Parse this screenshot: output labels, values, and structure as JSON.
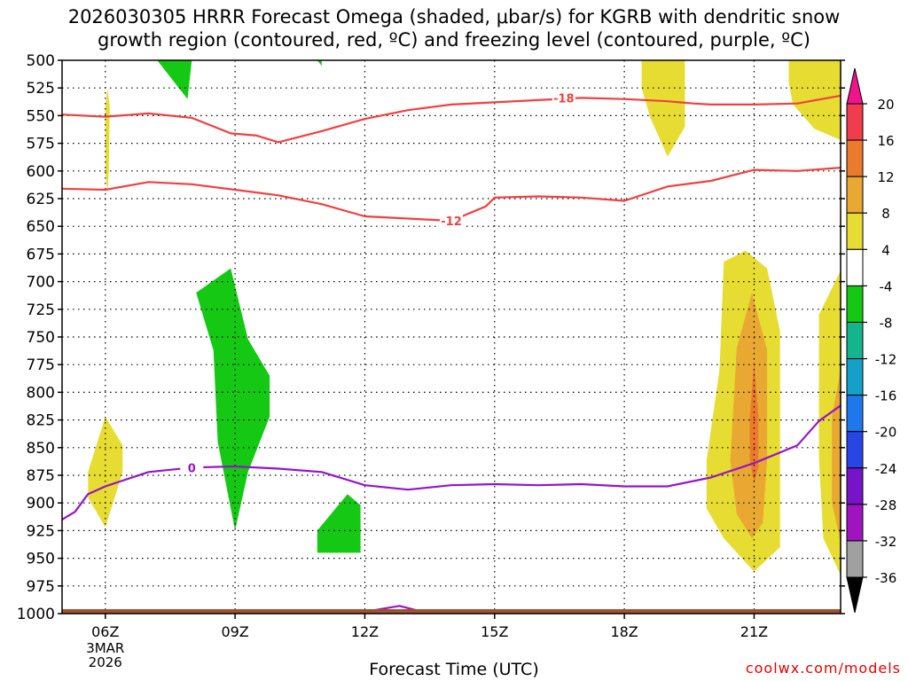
{
  "title_line1": "2026030305 HRRR Forecast Omega (shaded, μbar/s) for KGRB with dendritic snow",
  "title_line2": "growth region (contoured, red, ºC) and freezing level (contoured, purple, ºC)",
  "credit": "coolwx.com/models",
  "chart_data": {
    "type": "heatmap",
    "xlabel": "Forecast Time (UTC)",
    "x_axis": {
      "range_hours_utc_2026_03_03": [
        5.0,
        23.0
      ],
      "ticks": [
        {
          "hour": 6,
          "label": "06Z",
          "sublabels": [
            "3MAR",
            "2026"
          ]
        },
        {
          "hour": 9,
          "label": "09Z"
        },
        {
          "hour": 12,
          "label": "12Z"
        },
        {
          "hour": 15,
          "label": "15Z"
        },
        {
          "hour": 18,
          "label": "18Z"
        },
        {
          "hour": 21,
          "label": "21Z"
        }
      ]
    },
    "y_axis": {
      "units": "hPa",
      "range": [
        500,
        1000
      ],
      "ticks": [
        500,
        525,
        550,
        575,
        600,
        625,
        650,
        675,
        700,
        725,
        750,
        775,
        800,
        825,
        850,
        875,
        900,
        925,
        950,
        975,
        1000
      ]
    },
    "grid": "dotted",
    "colorbar": {
      "labels": [
        "20",
        "16",
        "12",
        "8",
        "4",
        "-4",
        "-8",
        "-12",
        "-16",
        "-20",
        "-24",
        "-28",
        "-32",
        "-36"
      ],
      "bins": [
        {
          "from": 16,
          "to": 20,
          "color": "#f03c4c"
        },
        {
          "from": 12,
          "to": 16,
          "color": "#ec7a2c"
        },
        {
          "from": 8,
          "to": 12,
          "color": "#e8a832"
        },
        {
          "from": 4,
          "to": 8,
          "color": "#e6dc32"
        },
        {
          "from": -4,
          "to": 4,
          "color": "#ffffff"
        },
        {
          "from": -8,
          "to": -4,
          "color": "#14c814"
        },
        {
          "from": -12,
          "to": -8,
          "color": "#14b48c"
        },
        {
          "from": -16,
          "to": -12,
          "color": "#14a0c8"
        },
        {
          "from": -20,
          "to": -16,
          "color": "#1e78ec"
        },
        {
          "from": -24,
          "to": -20,
          "color": "#2846e6"
        },
        {
          "from": -28,
          "to": -24,
          "color": "#7814c8"
        },
        {
          "from": -32,
          "to": -28,
          "color": "#a014c0"
        },
        {
          "from": -36,
          "to": -32,
          "color": "#a0a0a0"
        }
      ],
      "top_arrow_color": "#f0148c",
      "bottom_arrow_color": "#000000"
    },
    "shaded_regions": [
      {
        "band": "4-8",
        "color": "#e6dc32",
        "polygon": [
          [
            6.0,
            542
          ],
          [
            6.05,
            525
          ],
          [
            6.1,
            542
          ],
          [
            6.08,
            600
          ],
          [
            6.05,
            620
          ],
          [
            6.0,
            600
          ]
        ]
      },
      {
        "band": "4-8",
        "color": "#e6dc32",
        "polygon": [
          [
            5.6,
            872
          ],
          [
            6.0,
            822
          ],
          [
            6.4,
            848
          ],
          [
            6.4,
            872
          ],
          [
            6.0,
            922
          ],
          [
            5.6,
            895
          ]
        ]
      },
      {
        "band": "-8--4",
        "color": "#14c814",
        "polygon": [
          [
            7.2,
            500
          ],
          [
            8.0,
            500
          ],
          [
            7.9,
            535
          ],
          [
            7.6,
            520
          ]
        ]
      },
      {
        "band": "-8--4",
        "color": "#14c814",
        "polygon": [
          [
            10.9,
            500
          ],
          [
            11.0,
            500
          ],
          [
            11.0,
            505
          ]
        ]
      },
      {
        "band": "-8--4",
        "color": "#14c814",
        "polygon": [
          [
            8.1,
            710
          ],
          [
            8.9,
            688
          ],
          [
            9.3,
            752
          ],
          [
            9.8,
            785
          ],
          [
            9.8,
            822
          ],
          [
            9.3,
            872
          ],
          [
            9.0,
            925
          ],
          [
            8.6,
            845
          ],
          [
            8.5,
            762
          ]
        ]
      },
      {
        "band": "-8--4",
        "color": "#14c814",
        "polygon": [
          [
            10.9,
            925
          ],
          [
            11.6,
            892
          ],
          [
            11.9,
            902
          ],
          [
            11.9,
            945
          ],
          [
            10.9,
            945
          ]
        ]
      },
      {
        "band": "4-8",
        "color": "#e6dc32",
        "polygon": [
          [
            18.4,
            500
          ],
          [
            19.4,
            500
          ],
          [
            19.4,
            560
          ],
          [
            19.0,
            587
          ],
          [
            18.6,
            552
          ],
          [
            18.4,
            525
          ]
        ]
      },
      {
        "band": "4-8",
        "color": "#e6dc32",
        "polygon": [
          [
            21.8,
            500
          ],
          [
            23.0,
            500
          ],
          [
            23.0,
            572
          ],
          [
            22.4,
            562
          ],
          [
            21.9,
            540
          ],
          [
            21.8,
            520
          ]
        ]
      },
      {
        "band": "4-8",
        "color": "#e6dc32",
        "polygon": [
          [
            20.3,
            682
          ],
          [
            20.8,
            672
          ],
          [
            21.3,
            688
          ],
          [
            21.6,
            745
          ],
          [
            21.6,
            860
          ],
          [
            21.6,
            940
          ],
          [
            21.0,
            962
          ],
          [
            20.3,
            932
          ],
          [
            19.9,
            905
          ],
          [
            19.9,
            862
          ],
          [
            20.2,
            780
          ]
        ]
      },
      {
        "band": "8-12",
        "color": "#e8a832",
        "polygon": [
          [
            20.6,
            760
          ],
          [
            20.95,
            710
          ],
          [
            21.3,
            762
          ],
          [
            21.3,
            860
          ],
          [
            21.2,
            918
          ],
          [
            20.95,
            932
          ],
          [
            20.6,
            910
          ],
          [
            20.45,
            862
          ]
        ]
      },
      {
        "band": "12-16",
        "color": "#ec7a2c",
        "polygon": [
          [
            20.9,
            822
          ],
          [
            21.0,
            772
          ],
          [
            21.1,
            822
          ],
          [
            21.1,
            868
          ],
          [
            21.0,
            882
          ],
          [
            20.9,
            862
          ]
        ]
      },
      {
        "band": "4-8",
        "color": "#e6dc32",
        "polygon": [
          [
            22.5,
            730
          ],
          [
            23.0,
            690
          ],
          [
            23.0,
            965
          ],
          [
            22.6,
            932
          ],
          [
            22.5,
            860
          ]
        ]
      },
      {
        "band": "8-12",
        "color": "#e8a832",
        "polygon": [
          [
            23.0,
            780
          ],
          [
            22.8,
            822
          ],
          [
            22.8,
            900
          ],
          [
            23.0,
            935
          ]
        ]
      }
    ],
    "contours": [
      {
        "kind": "dendritic growth region",
        "value": -18,
        "label": "-18",
        "color": "#f04040",
        "points": [
          [
            5.0,
            549
          ],
          [
            6.0,
            551
          ],
          [
            7.0,
            548
          ],
          [
            8.0,
            552
          ],
          [
            8.9,
            566
          ],
          [
            9.5,
            568
          ],
          [
            10.0,
            574
          ],
          [
            11.0,
            564
          ],
          [
            12.0,
            553
          ],
          [
            13.0,
            545
          ],
          [
            14.0,
            540
          ],
          [
            15.0,
            538
          ],
          [
            16.0,
            536
          ],
          [
            17.0,
            534
          ],
          [
            18.0,
            535
          ],
          [
            19.0,
            537
          ],
          [
            19.6,
            539
          ],
          [
            20.0,
            540
          ],
          [
            21.0,
            540
          ],
          [
            22.0,
            539
          ],
          [
            23.0,
            532
          ]
        ],
        "label_at": [
          16.6,
          534
        ]
      },
      {
        "kind": "dendritic growth region",
        "value": -12,
        "label": "-12",
        "color": "#f04040",
        "points": [
          [
            5.0,
            616
          ],
          [
            6.0,
            617
          ],
          [
            7.0,
            610
          ],
          [
            8.0,
            612
          ],
          [
            9.0,
            617
          ],
          [
            10.0,
            622
          ],
          [
            11.0,
            630
          ],
          [
            12.0,
            641
          ],
          [
            13.0,
            643
          ],
          [
            14.0,
            645
          ],
          [
            14.8,
            632
          ],
          [
            15.0,
            624
          ],
          [
            16.0,
            623
          ],
          [
            17.0,
            624
          ],
          [
            18.0,
            627
          ],
          [
            19.0,
            614
          ],
          [
            20.0,
            609
          ],
          [
            21.0,
            599
          ],
          [
            22.0,
            600
          ],
          [
            23.0,
            597
          ]
        ],
        "label_at": [
          14.0,
          645
        ]
      },
      {
        "kind": "freezing level",
        "value": 0,
        "label": "0",
        "color": "#9614c8",
        "points": [
          [
            5.0,
            915
          ],
          [
            5.3,
            908
          ],
          [
            5.6,
            892
          ],
          [
            6.0,
            885
          ],
          [
            7.0,
            872
          ],
          [
            8.0,
            868
          ],
          [
            9.0,
            867
          ],
          [
            10.0,
            869
          ],
          [
            11.0,
            872
          ],
          [
            12.0,
            884
          ],
          [
            13.0,
            888
          ],
          [
            14.0,
            884
          ],
          [
            15.0,
            883
          ],
          [
            16.0,
            884
          ],
          [
            17.0,
            883
          ],
          [
            18.0,
            885
          ],
          [
            19.0,
            885
          ],
          [
            20.0,
            877
          ],
          [
            21.0,
            864
          ],
          [
            22.0,
            848
          ],
          [
            22.5,
            826
          ],
          [
            23.0,
            812
          ]
        ],
        "label_at": [
          8.0,
          868
        ]
      },
      {
        "kind": "freezing level",
        "value": 0,
        "label": "",
        "color": "#9614c8",
        "points": [
          [
            12.2,
            997
          ],
          [
            12.8,
            993
          ],
          [
            13.2,
            997
          ]
        ]
      }
    ],
    "terrain": {
      "color": "#a0522d",
      "surface_pressure_hPa": 996
    }
  }
}
